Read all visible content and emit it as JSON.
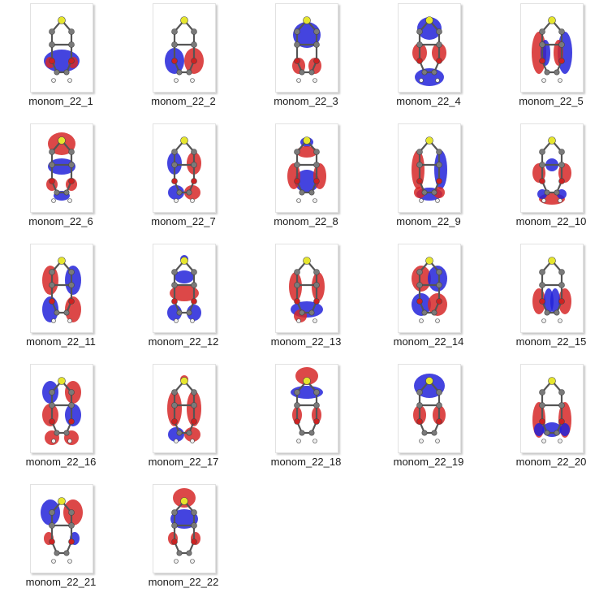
{
  "folder_view": {
    "items": [
      {
        "name": "monom_22_1",
        "variant": 0
      },
      {
        "name": "monom_22_2",
        "variant": 1
      },
      {
        "name": "monom_22_3",
        "variant": 2
      },
      {
        "name": "monom_22_4",
        "variant": 3
      },
      {
        "name": "monom_22_5",
        "variant": 4
      },
      {
        "name": "monom_22_6",
        "variant": 5
      },
      {
        "name": "monom_22_7",
        "variant": 6
      },
      {
        "name": "monom_22_8",
        "variant": 7
      },
      {
        "name": "monom_22_9",
        "variant": 8
      },
      {
        "name": "monom_22_10",
        "variant": 9
      },
      {
        "name": "monom_22_11",
        "variant": 10
      },
      {
        "name": "monom_22_12",
        "variant": 11
      },
      {
        "name": "monom_22_13",
        "variant": 12
      },
      {
        "name": "monom_22_14",
        "variant": 13
      },
      {
        "name": "monom_22_15",
        "variant": 14
      },
      {
        "name": "monom_22_16",
        "variant": 15
      },
      {
        "name": "monom_22_17",
        "variant": 16
      },
      {
        "name": "monom_22_18",
        "variant": 17
      },
      {
        "name": "monom_22_19",
        "variant": 18
      },
      {
        "name": "monom_22_20",
        "variant": 19
      },
      {
        "name": "monom_22_21",
        "variant": 20
      },
      {
        "name": "monom_22_22",
        "variant": 21
      }
    ]
  },
  "colors": {
    "lobe_positive": "#d62828",
    "lobe_negative": "#2323d9",
    "atom_carbon": "#7a7a7a",
    "atom_sulfur": "#e6e62e",
    "atom_hydrogen": "#eeeeee",
    "atom_oxygen": "#cc2222"
  }
}
